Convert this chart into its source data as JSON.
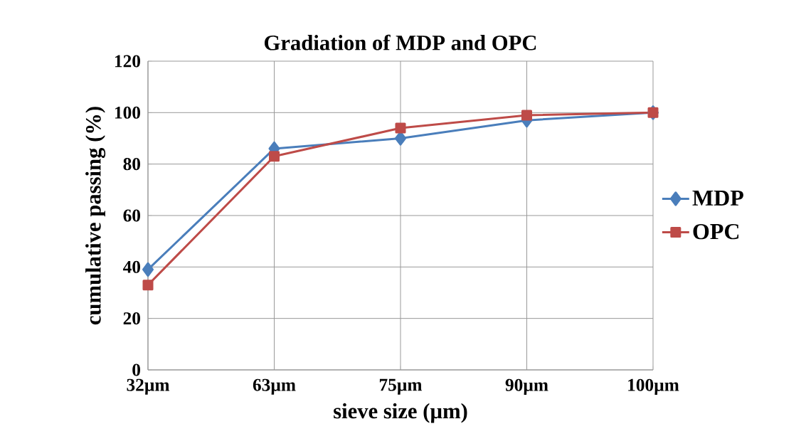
{
  "chart_data": {
    "type": "line",
    "title": "Gradiation of MDP and OPC",
    "xlabel": "sieve size (µm)",
    "ylabel": "cumulative passing (%)",
    "categories": [
      "32µm",
      "63µm",
      "75µm",
      "90µm",
      "100µm"
    ],
    "series": [
      {
        "name": "MDP",
        "color": "#4a7ebb",
        "marker": "diamond",
        "values": [
          39,
          86,
          90,
          97,
          100
        ]
      },
      {
        "name": "OPC",
        "color": "#be4b48",
        "marker": "square",
        "values": [
          33,
          83,
          94,
          99,
          100
        ]
      }
    ],
    "ylim": [
      0,
      120
    ],
    "yticks": [
      0,
      20,
      40,
      60,
      80,
      100,
      120
    ],
    "grid": true,
    "legend": "right",
    "line_style": "solid"
  }
}
